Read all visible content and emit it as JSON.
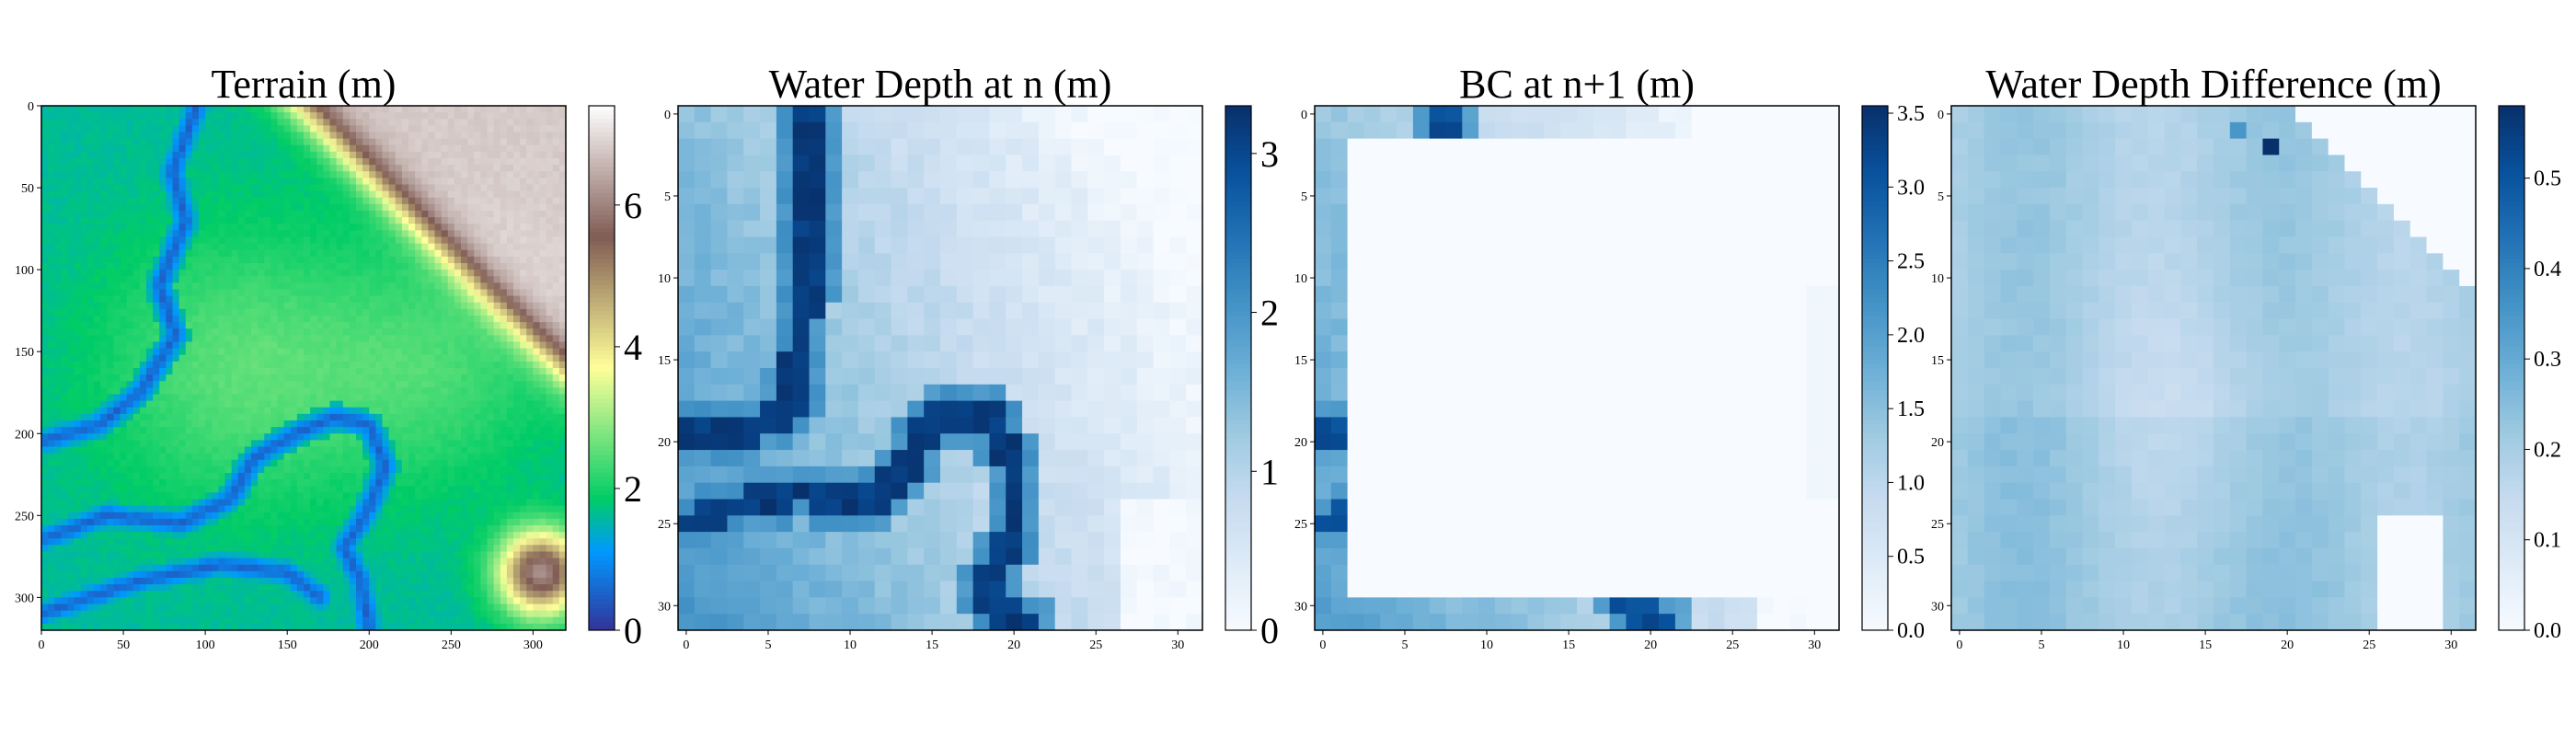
{
  "chart_data": [
    {
      "type": "heatmap",
      "title": "Terrain (m)",
      "xlabel": "",
      "ylabel": "",
      "x_ticks": [
        "0",
        "50",
        "100",
        "150",
        "200",
        "250",
        "300"
      ],
      "y_ticks": [
        "0",
        "50",
        "100",
        "150",
        "200",
        "250",
        "300"
      ],
      "xlim": [
        0,
        320
      ],
      "ylim": [
        320,
        0
      ],
      "grid_size": 320,
      "colormap": "terrain",
      "colorbar": {
        "ticks": [
          "0",
          "2",
          "4",
          "6"
        ],
        "values": [
          0,
          2,
          4,
          6
        ],
        "range": [
          0,
          7.4
        ]
      },
      "features": {
        "river_channel": "winding blue channel ~0.5 m along left edge and lower meander loop",
        "ridge": "brown/white high ground 6-7 m in upper right corner",
        "mound": "brown mound ~6 m near lower right"
      }
    },
    {
      "type": "heatmap",
      "title": "Water Depth at n (m)",
      "xlabel": "",
      "ylabel": "",
      "x_ticks": [
        "0",
        "5",
        "10",
        "15",
        "20",
        "25",
        "30"
      ],
      "y_ticks": [
        "0",
        "5",
        "10",
        "15",
        "20",
        "25",
        "30"
      ],
      "xlim": [
        -0.5,
        31.5
      ],
      "ylim": [
        31.5,
        -0.5
      ],
      "grid_size": 32,
      "colormap": "Blues",
      "colorbar": {
        "ticks": [
          "0",
          "1",
          "2",
          "3"
        ],
        "values": [
          0,
          1,
          2,
          3
        ],
        "range": [
          0,
          3.3
        ]
      },
      "features": {
        "deep_channel": "3.2 m channel along x 7-8 from top, turning left at row 19 and looping through x 12-21 rows 17-31",
        "dry_area": "near 0 m at upper right and lower right"
      }
    },
    {
      "type": "heatmap",
      "title": "BC at n+1 (m)",
      "xlabel": "",
      "ylabel": "",
      "x_ticks": [
        "0",
        "5",
        "10",
        "15",
        "20",
        "25",
        "30"
      ],
      "y_ticks": [
        "0",
        "5",
        "10",
        "15",
        "20",
        "25",
        "30"
      ],
      "xlim": [
        -0.5,
        31.5
      ],
      "ylim": [
        31.5,
        -0.5
      ],
      "grid_size": 32,
      "colormap": "Blues",
      "colorbar": {
        "ticks": [
          "0.0",
          "0.5",
          "1.0",
          "1.5",
          "2.0",
          "2.5",
          "3.0",
          "3.5"
        ],
        "values": [
          0,
          0.5,
          1,
          1.5,
          2,
          2.5,
          3,
          3.5
        ],
        "range": [
          0,
          3.55
        ]
      },
      "features": {
        "boundary_values": "non-zero only on outer rows/columns (boundary condition), zero interior",
        "peaks": "~3.5 m at top row x 7-8 and bottom row x 20-21"
      }
    },
    {
      "type": "heatmap",
      "title": "Water Depth Difference (m)",
      "xlabel": "",
      "ylabel": "",
      "x_ticks": [
        "0",
        "5",
        "10",
        "15",
        "20",
        "25",
        "30"
      ],
      "y_ticks": [
        "0",
        "5",
        "10",
        "15",
        "20",
        "25",
        "30"
      ],
      "xlim": [
        -0.5,
        31.5
      ],
      "ylim": [
        31.5,
        -0.5
      ],
      "grid_size": 32,
      "colormap": "Blues",
      "colorbar": {
        "ticks": [
          "0.0",
          "0.1",
          "0.2",
          "0.3",
          "0.4",
          "0.5"
        ],
        "values": [
          0,
          0.1,
          0.2,
          0.3,
          0.4,
          0.5
        ],
        "range": [
          0,
          0.58
        ]
      },
      "features": {
        "typical": "~0.15-0.25 m across most of the domain",
        "peak": "~0.58 m single cell near x 19, row 2",
        "zero_areas": "0 m in upper right and lower right patches"
      }
    }
  ]
}
